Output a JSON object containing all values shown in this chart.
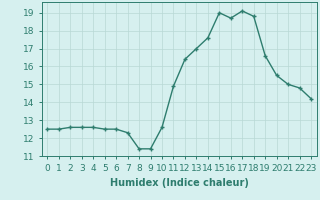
{
  "x": [
    0,
    1,
    2,
    3,
    4,
    5,
    6,
    7,
    8,
    9,
    10,
    11,
    12,
    13,
    14,
    15,
    16,
    17,
    18,
    19,
    20,
    21,
    22,
    23
  ],
  "y": [
    12.5,
    12.5,
    12.6,
    12.6,
    12.6,
    12.5,
    12.5,
    12.3,
    11.4,
    11.4,
    12.6,
    14.9,
    16.4,
    17.0,
    17.6,
    19.0,
    18.7,
    19.1,
    18.8,
    16.6,
    15.5,
    15.0,
    14.8,
    14.2
  ],
  "line_color": "#2e7d6e",
  "marker": "+",
  "marker_size": 3,
  "marker_lw": 1.0,
  "line_width": 1.0,
  "bg_color": "#d6f0ef",
  "grid_color": "#b8d8d5",
  "xlabel": "Humidex (Indice chaleur)",
  "ylabel_ticks": [
    11,
    12,
    13,
    14,
    15,
    16,
    17,
    18,
    19
  ],
  "xlim": [
    -0.5,
    23.5
  ],
  "ylim": [
    11,
    19.6
  ],
  "xlabel_fontsize": 7,
  "tick_fontsize": 6.5
}
